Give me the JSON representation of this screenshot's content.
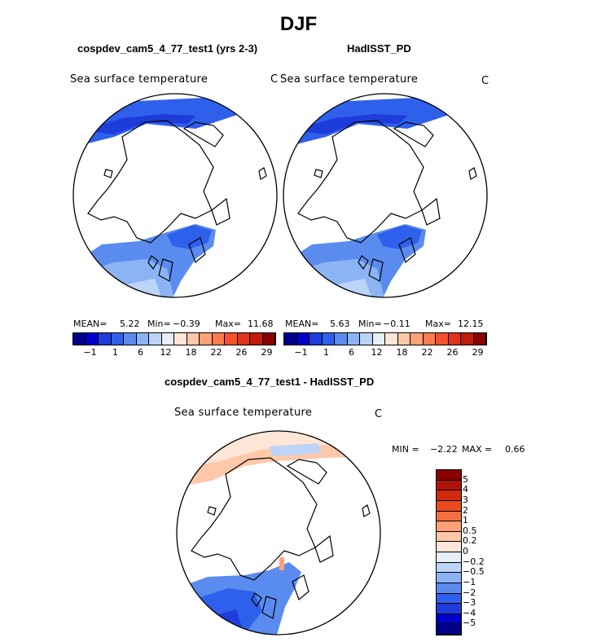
{
  "figure": {
    "season": "DJF",
    "diff_title": "cospdev_cam5_4_77_test1 - HadISST_PD"
  },
  "panels": [
    {
      "case": "cospdev_cam5_4_77_test1 (yrs 2-3)",
      "field": "Sea surface temperature",
      "units": "C",
      "mean_label": "MEAN=",
      "mean": "5.22",
      "min_label": "Min=",
      "min": "−0.39",
      "max_label": "Max=",
      "max": "11.68"
    },
    {
      "case": "HadISST_PD",
      "field": "Sea surface temperature",
      "units": "C",
      "mean_label": "MEAN=",
      "mean": "5.63",
      "min_label": "Min=",
      "min": "−0.11",
      "max_label": "Max=",
      "max": "12.15"
    }
  ],
  "diff_panel": {
    "field": "Sea surface temperature",
    "units": "C",
    "min_label": "MIN =",
    "min": "−2.22",
    "max_label": "MAX =",
    "max": "0.66"
  },
  "colorbar_abs": {
    "tick_labels": [
      "−1",
      "1",
      "6",
      "12",
      "18",
      "22",
      "26",
      "29"
    ],
    "colors": [
      "#00008b",
      "#0000cd",
      "#1e3cdc",
      "#2f60ec",
      "#5a8cf0",
      "#8cb4f5",
      "#bcd4f8",
      "#e6eefa",
      "#ffe6d6",
      "#ffc8a8",
      "#ffa078",
      "#ff7a4c",
      "#f5502a",
      "#e03218",
      "#c01a0a",
      "#8b0000"
    ]
  },
  "colorbar_diff": {
    "tick_labels": [
      "5",
      "4",
      "3",
      "2",
      "1",
      "0.5",
      "0.2",
      "0",
      "−0.2",
      "−0.5",
      "−1",
      "−2",
      "−3",
      "−4",
      "−5"
    ],
    "colors": [
      "#8b0000",
      "#b01208",
      "#d02a10",
      "#e84a20",
      "#f57040",
      "#ffa078",
      "#ffc8a8",
      "#ffe8da",
      "#e6eef8",
      "#bcd4f8",
      "#8cb4f5",
      "#5a8cf0",
      "#2f60ec",
      "#1e3cdc",
      "#0000cd",
      "#00008b"
    ]
  },
  "chart_data": [
    {
      "type": "heatmap",
      "title": "Sea surface temperature",
      "subtitle": "cospdev_cam5_4_77_test1 (yrs 2-3)",
      "units": "C",
      "projection": "north polar stereographic",
      "stats": {
        "mean": 5.22,
        "min": -0.39,
        "max": 11.68
      },
      "contour_levels": [
        -1,
        1,
        6,
        12,
        18,
        22,
        26,
        29
      ]
    },
    {
      "type": "heatmap",
      "title": "Sea surface temperature",
      "subtitle": "HadISST_PD",
      "units": "C",
      "projection": "north polar stereographic",
      "stats": {
        "mean": 5.63,
        "min": -0.11,
        "max": 12.15
      },
      "contour_levels": [
        -1,
        1,
        6,
        12,
        18,
        22,
        26,
        29
      ]
    },
    {
      "type": "heatmap",
      "title": "Sea surface temperature",
      "subtitle": "cospdev_cam5_4_77_test1 - HadISST_PD",
      "units": "C",
      "projection": "north polar stereographic",
      "stats": {
        "min": -2.22,
        "max": 0.66
      },
      "contour_levels": [
        -5,
        -4,
        -3,
        -2,
        -1,
        -0.5,
        -0.2,
        0,
        0.2,
        0.5,
        1,
        2,
        3,
        4,
        5
      ]
    }
  ]
}
